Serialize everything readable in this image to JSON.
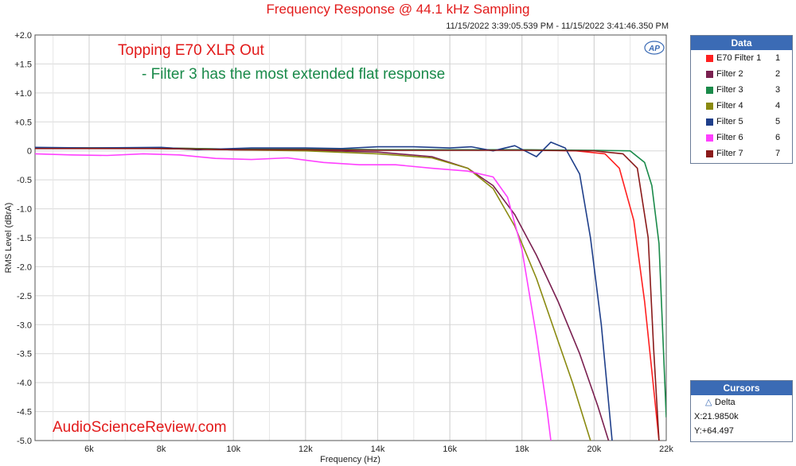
{
  "chart_data": {
    "type": "line",
    "title": "Frequency Response @ 44.1 kHz Sampling",
    "timestamp": "11/15/2022 3:39:05.539 PM - 11/15/2022 3:41:46.350 PM",
    "xlabel": "Frequency (Hz)",
    "ylabel": "RMS Level (dBrA)",
    "xlim": [
      4500,
      22000
    ],
    "ylim": [
      -5.0,
      2.0
    ],
    "x_ticks": [
      {
        "value": 6000,
        "label": "6k"
      },
      {
        "value": 8000,
        "label": "8k"
      },
      {
        "value": 10000,
        "label": "10k"
      },
      {
        "value": 12000,
        "label": "12k"
      },
      {
        "value": 14000,
        "label": "14k"
      },
      {
        "value": 16000,
        "label": "16k"
      },
      {
        "value": 18000,
        "label": "18k"
      },
      {
        "value": 20000,
        "label": "20k"
      },
      {
        "value": 22000,
        "label": "22k"
      }
    ],
    "y_ticks": [
      {
        "value": 2.0,
        "label": "+2.0"
      },
      {
        "value": 1.5,
        "label": "+1.5"
      },
      {
        "value": 1.0,
        "label": "+1.0"
      },
      {
        "value": 0.5,
        "label": "+0.5"
      },
      {
        "value": 0,
        "label": "0"
      },
      {
        "value": -0.5,
        "label": "-0.5"
      },
      {
        "value": -1.0,
        "label": "-1.0"
      },
      {
        "value": -1.5,
        "label": "-1.5"
      },
      {
        "value": -2.0,
        "label": "-2.0"
      },
      {
        "value": -2.5,
        "label": "-2.5"
      },
      {
        "value": -3.0,
        "label": "-3.0"
      },
      {
        "value": -3.5,
        "label": "-3.5"
      },
      {
        "value": -4.0,
        "label": "-4.0"
      },
      {
        "value": -4.5,
        "label": "-4.5"
      },
      {
        "value": -5.0,
        "label": "-5.0"
      }
    ],
    "grid": true,
    "series": [
      {
        "name": "E70 Filter 1",
        "number": "1",
        "color": "#ff2020",
        "points": [
          [
            4500,
            0.05
          ],
          [
            6000,
            0.05
          ],
          [
            8000,
            0.05
          ],
          [
            10000,
            0.03
          ],
          [
            12000,
            0.03
          ],
          [
            14000,
            0.02
          ],
          [
            16000,
            0.02
          ],
          [
            18000,
            0.02
          ],
          [
            19500,
            0.0
          ],
          [
            20300,
            -0.05
          ],
          [
            20700,
            -0.3
          ],
          [
            21100,
            -1.2
          ],
          [
            21400,
            -2.6
          ],
          [
            21600,
            -3.8
          ],
          [
            21800,
            -5.0
          ]
        ]
      },
      {
        "name": "Filter 2",
        "number": "2",
        "color": "#7a2050",
        "points": [
          [
            4500,
            0.05
          ],
          [
            6000,
            0.05
          ],
          [
            8000,
            0.04
          ],
          [
            10000,
            0.02
          ],
          [
            12000,
            0.01
          ],
          [
            14000,
            -0.02
          ],
          [
            15500,
            -0.1
          ],
          [
            16500,
            -0.3
          ],
          [
            17200,
            -0.6
          ],
          [
            17800,
            -1.1
          ],
          [
            18400,
            -1.8
          ],
          [
            19000,
            -2.6
          ],
          [
            19600,
            -3.5
          ],
          [
            20100,
            -4.4
          ],
          [
            20400,
            -5.0
          ]
        ]
      },
      {
        "name": "Filter 3",
        "number": "3",
        "color": "#1a8a4a",
        "points": [
          [
            4500,
            0.05
          ],
          [
            6000,
            0.05
          ],
          [
            8000,
            0.05
          ],
          [
            10000,
            0.03
          ],
          [
            12000,
            0.03
          ],
          [
            14000,
            0.02
          ],
          [
            16000,
            0.02
          ],
          [
            18000,
            0.02
          ],
          [
            20000,
            0.01
          ],
          [
            21000,
            0.0
          ],
          [
            21400,
            -0.2
          ],
          [
            21600,
            -0.6
          ],
          [
            21800,
            -1.6
          ],
          [
            22000,
            -4.6
          ]
        ]
      },
      {
        "name": "Filter 4",
        "number": "4",
        "color": "#8a8a10",
        "points": [
          [
            4500,
            0.05
          ],
          [
            6000,
            0.05
          ],
          [
            8000,
            0.04
          ],
          [
            10000,
            0.02
          ],
          [
            12000,
            0.0
          ],
          [
            14000,
            -0.05
          ],
          [
            15500,
            -0.12
          ],
          [
            16500,
            -0.3
          ],
          [
            17200,
            -0.65
          ],
          [
            17800,
            -1.3
          ],
          [
            18400,
            -2.2
          ],
          [
            18900,
            -3.1
          ],
          [
            19400,
            -4.0
          ],
          [
            19900,
            -5.0
          ]
        ]
      },
      {
        "name": "Filter 5",
        "number": "5",
        "color": "#1f3f8a",
        "points": [
          [
            4500,
            0.06
          ],
          [
            6000,
            0.05
          ],
          [
            8000,
            0.06
          ],
          [
            9000,
            0.02
          ],
          [
            10500,
            0.05
          ],
          [
            12000,
            0.05
          ],
          [
            13000,
            0.04
          ],
          [
            14000,
            0.07
          ],
          [
            15000,
            0.07
          ],
          [
            16000,
            0.05
          ],
          [
            16600,
            0.07
          ],
          [
            17200,
            0.0
          ],
          [
            17800,
            0.09
          ],
          [
            18400,
            -0.1
          ],
          [
            18800,
            0.15
          ],
          [
            19200,
            0.05
          ],
          [
            19600,
            -0.4
          ],
          [
            19900,
            -1.5
          ],
          [
            20200,
            -3.0
          ],
          [
            20500,
            -5.0
          ]
        ]
      },
      {
        "name": "Filter 6",
        "number": "6",
        "color": "#ff40ff",
        "points": [
          [
            4500,
            -0.05
          ],
          [
            5500,
            -0.07
          ],
          [
            6500,
            -0.08
          ],
          [
            7500,
            -0.05
          ],
          [
            8500,
            -0.07
          ],
          [
            9500,
            -0.13
          ],
          [
            10500,
            -0.15
          ],
          [
            11500,
            -0.12
          ],
          [
            12500,
            -0.2
          ],
          [
            13500,
            -0.24
          ],
          [
            14500,
            -0.24
          ],
          [
            15500,
            -0.3
          ],
          [
            16500,
            -0.35
          ],
          [
            17200,
            -0.45
          ],
          [
            17600,
            -0.8
          ],
          [
            18000,
            -1.7
          ],
          [
            18400,
            -3.2
          ],
          [
            18700,
            -4.5
          ],
          [
            18800,
            -5.0
          ]
        ]
      },
      {
        "name": "Filter 7",
        "number": "7",
        "color": "#8a1a1a",
        "points": [
          [
            4500,
            0.04
          ],
          [
            6000,
            0.04
          ],
          [
            8000,
            0.04
          ],
          [
            10000,
            0.02
          ],
          [
            12000,
            0.02
          ],
          [
            14000,
            0.01
          ],
          [
            16000,
            0.01
          ],
          [
            18000,
            0.01
          ],
          [
            20000,
            0.0
          ],
          [
            20800,
            -0.05
          ],
          [
            21200,
            -0.3
          ],
          [
            21500,
            -1.5
          ],
          [
            21650,
            -3.4
          ],
          [
            21800,
            -5.0
          ]
        ]
      }
    ]
  },
  "annotations": {
    "device": "Topping E70 XLR Out",
    "note": "- Filter 3 has the most extended flat response",
    "watermark": "AudioScienceReview.com"
  },
  "legend": {
    "header": "Data"
  },
  "cursors": {
    "header": "Cursors",
    "mode": "Delta",
    "x": "X:21.9850k",
    "y": "Y:+64.497"
  },
  "logo": "AP"
}
